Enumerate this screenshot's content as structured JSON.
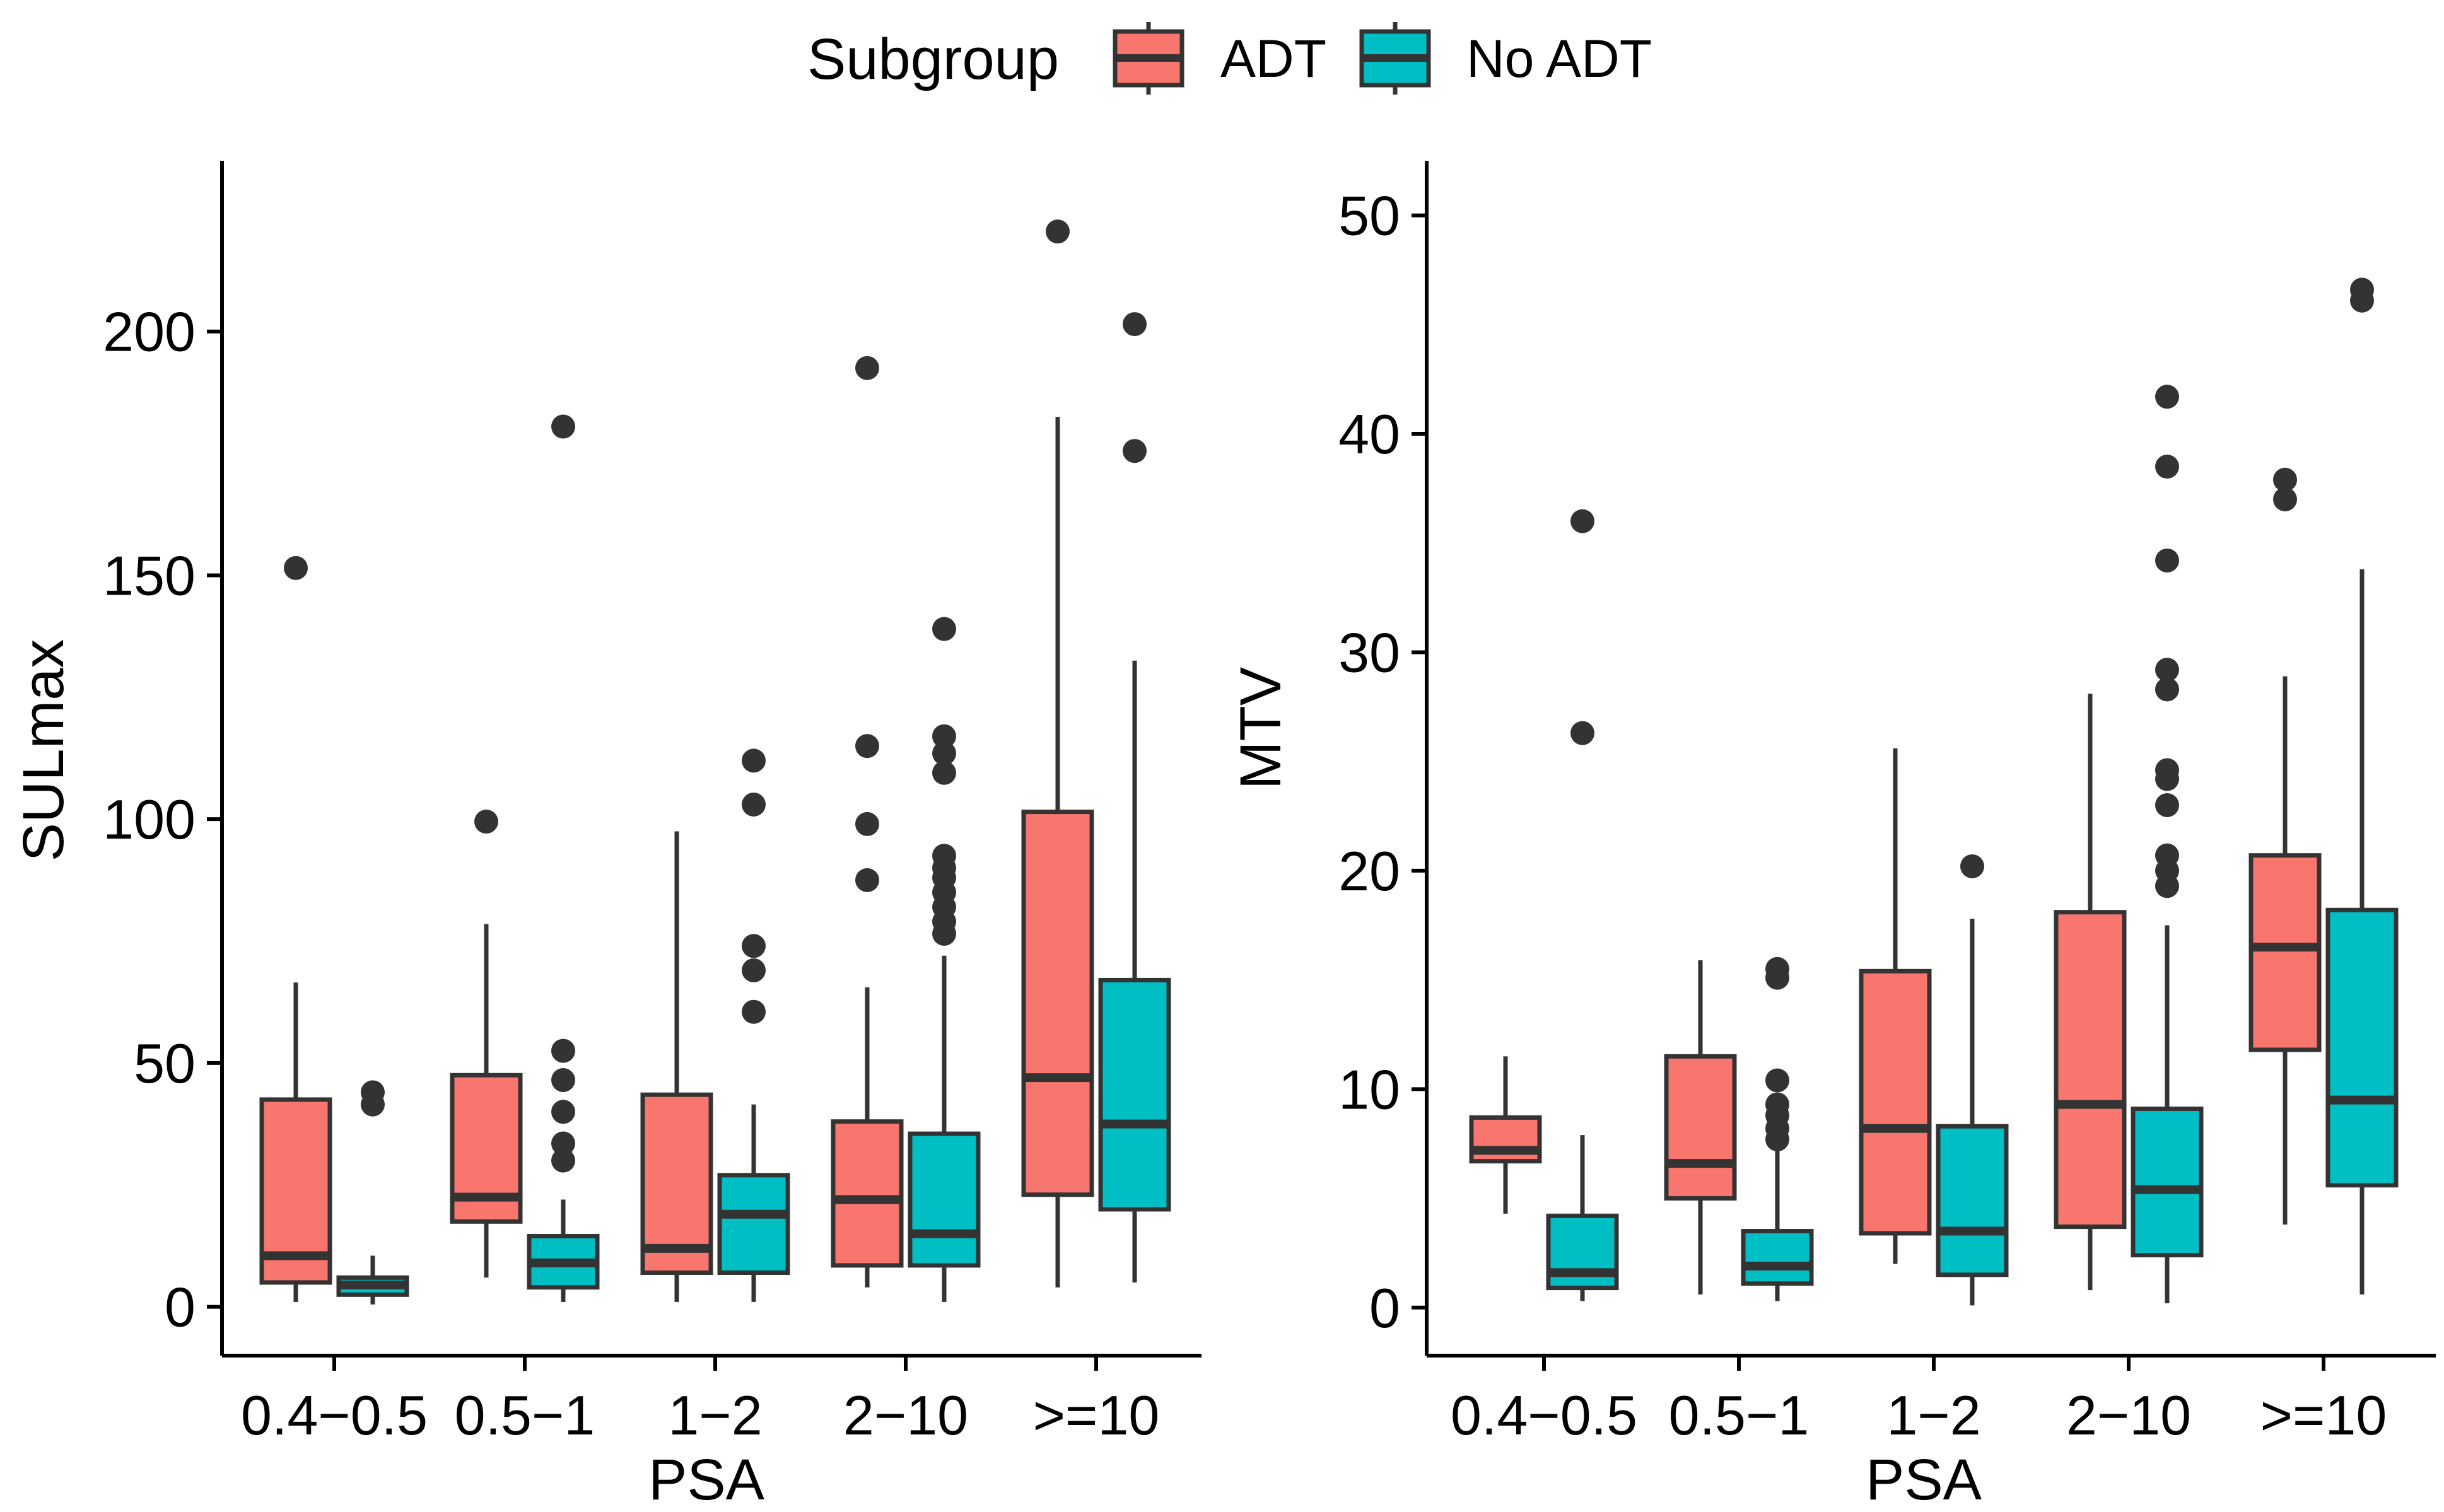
{
  "legend": {
    "title": "Subgroup",
    "items": [
      {
        "label": "ADT",
        "color": "#F8766D"
      },
      {
        "label": "No ADT",
        "color": "#00BFC4"
      }
    ]
  },
  "chart_data": [
    {
      "type": "boxplot",
      "xlabel": "PSA",
      "ylabel": "SULmax",
      "ylim": [
        -10,
        235
      ],
      "yticks": [
        0,
        50,
        100,
        150,
        200
      ],
      "categories": [
        "0.4−0.5",
        "0.5−1",
        "1−2",
        "2−10",
        ">=10"
      ],
      "series": [
        {
          "name": "ADT",
          "boxes": [
            {
              "whisker_low": 1,
              "q1": 5,
              "median": 10.5,
              "q3": 42.5,
              "whisker_high": 66.5,
              "outliers": [
                151.5
              ]
            },
            {
              "whisker_low": 6,
              "q1": 17.5,
              "median": 22.5,
              "q3": 47.5,
              "whisker_high": 78.5,
              "outliers": [
                99.5
              ]
            },
            {
              "whisker_low": 1,
              "q1": 7,
              "median": 12,
              "q3": 43.5,
              "whisker_high": 97.5,
              "outliers": []
            },
            {
              "whisker_low": 4,
              "q1": 8.5,
              "median": 22,
              "q3": 38,
              "whisker_high": 65.5,
              "outliers": [
                87.5,
                99,
                115,
                192.5
              ]
            },
            {
              "whisker_low": 4,
              "q1": 23,
              "median": 47,
              "q3": 101.5,
              "whisker_high": 182.5,
              "outliers": [
                220.5
              ]
            }
          ]
        },
        {
          "name": "No ADT",
          "boxes": [
            {
              "whisker_low": 0.5,
              "q1": 2.5,
              "median": 4.5,
              "q3": 6,
              "whisker_high": 10.5,
              "outliers": [
                41.5,
                44
              ]
            },
            {
              "whisker_low": 1,
              "q1": 4,
              "median": 9,
              "q3": 14.5,
              "whisker_high": 22,
              "outliers": [
                30,
                33.5,
                40,
                46.5,
                52.5,
                180.5
              ]
            },
            {
              "whisker_low": 1,
              "q1": 7,
              "median": 19,
              "q3": 27,
              "whisker_high": 41.5,
              "outliers": [
                60.5,
                69,
                74,
                103,
                112
              ]
            },
            {
              "whisker_low": 1,
              "q1": 8.5,
              "median": 15,
              "q3": 35.5,
              "whisker_high": 72,
              "outliers": [
                76.5,
                79,
                82,
                85,
                88,
                90,
                92.5,
                109.5,
                113.5,
                117,
                139
              ]
            },
            {
              "whisker_low": 5,
              "q1": 20,
              "median": 37.5,
              "q3": 67,
              "whisker_high": 132.5,
              "outliers": [
                175.5,
                201.5
              ]
            }
          ]
        }
      ]
    },
    {
      "type": "boxplot",
      "xlabel": "PSA",
      "ylabel": "MTV",
      "ylim": [
        -2.2,
        52.5
      ],
      "yticks": [
        0,
        10,
        20,
        30,
        40,
        50
      ],
      "categories": [
        "0.4−0.5",
        "0.5−1",
        "1−2",
        "2−10",
        ">=10"
      ],
      "series": [
        {
          "name": "ADT",
          "boxes": [
            {
              "whisker_low": 4.3,
              "q1": 6.7,
              "median": 7.2,
              "q3": 8.7,
              "whisker_high": 11.5,
              "outliers": []
            },
            {
              "whisker_low": 0.6,
              "q1": 5,
              "median": 6.6,
              "q3": 11.5,
              "whisker_high": 15.9,
              "outliers": []
            },
            {
              "whisker_low": 2,
              "q1": 3.4,
              "median": 8.2,
              "q3": 15.4,
              "whisker_high": 25.6,
              "outliers": []
            },
            {
              "whisker_low": 0.8,
              "q1": 3.7,
              "median": 9.3,
              "q3": 18.1,
              "whisker_high": 28.1,
              "outliers": []
            },
            {
              "whisker_low": 3.8,
              "q1": 11.8,
              "median": 16.5,
              "q3": 20.7,
              "whisker_high": 28.9,
              "outliers": [
                37,
                37.9
              ]
            }
          ]
        },
        {
          "name": "No ADT",
          "boxes": [
            {
              "whisker_low": 0.3,
              "q1": 0.9,
              "median": 1.6,
              "q3": 4.2,
              "whisker_high": 7.9,
              "outliers": [
                26.3,
                36
              ]
            },
            {
              "whisker_low": 0.3,
              "q1": 1.1,
              "median": 1.9,
              "q3": 3.5,
              "whisker_high": 7.2,
              "outliers": [
                7.7,
                8.2,
                8.8,
                9.3,
                10.4,
                15.1,
                15.5
              ]
            },
            {
              "whisker_low": 0.1,
              "q1": 1.5,
              "median": 3.5,
              "q3": 8.3,
              "whisker_high": 17.8,
              "outliers": [
                20.2
              ]
            },
            {
              "whisker_low": 0.2,
              "q1": 2.4,
              "median": 5.4,
              "q3": 9.1,
              "whisker_high": 17.5,
              "outliers": [
                19.3,
                20,
                20.7,
                23,
                24.2,
                24.6,
                28.3,
                29.2,
                34.2,
                38.5,
                41.7
              ]
            },
            {
              "whisker_low": 0.6,
              "q1": 5.6,
              "median": 9.5,
              "q3": 18.2,
              "whisker_high": 33.8,
              "outliers": [
                46.1,
                46.6
              ]
            }
          ]
        }
      ]
    }
  ]
}
